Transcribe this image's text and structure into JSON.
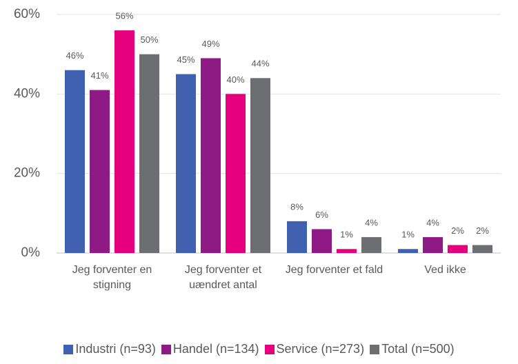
{
  "chart_data": {
    "type": "bar",
    "categories": [
      "Jeg forventer en stigning",
      "Jeg forventer et uændret antal",
      "Jeg forventer et fald",
      "Ved ikke"
    ],
    "series": [
      {
        "name": "Industri (n=93)",
        "color": "#4060b0",
        "values": [
          46,
          45,
          8,
          1
        ],
        "value_labels": [
          "46%",
          "45%",
          "8%",
          "1%"
        ]
      },
      {
        "name": "Handel (n=134)",
        "color": "#8e1a86",
        "values": [
          41,
          49,
          6,
          4
        ],
        "value_labels": [
          "41%",
          "49%",
          "6%",
          "4%"
        ]
      },
      {
        "name": "Service (n=273)",
        "color": "#e6007e",
        "values": [
          56,
          40,
          1,
          2
        ],
        "value_labels": [
          "56%",
          "40%",
          "1%",
          "2%"
        ]
      },
      {
        "name": "Total (n=500)",
        "color": "#6d6e71",
        "values": [
          50,
          44,
          4,
          2
        ],
        "value_labels": [
          "50%",
          "44%",
          "4%",
          "2%"
        ]
      }
    ],
    "ylim": [
      0,
      60
    ],
    "yticks": [
      {
        "value": 0,
        "label": "0%"
      },
      {
        "value": 20,
        "label": "20%"
      },
      {
        "value": 40,
        "label": "40%"
      },
      {
        "value": 60,
        "label": "60%"
      }
    ],
    "grid": true
  }
}
